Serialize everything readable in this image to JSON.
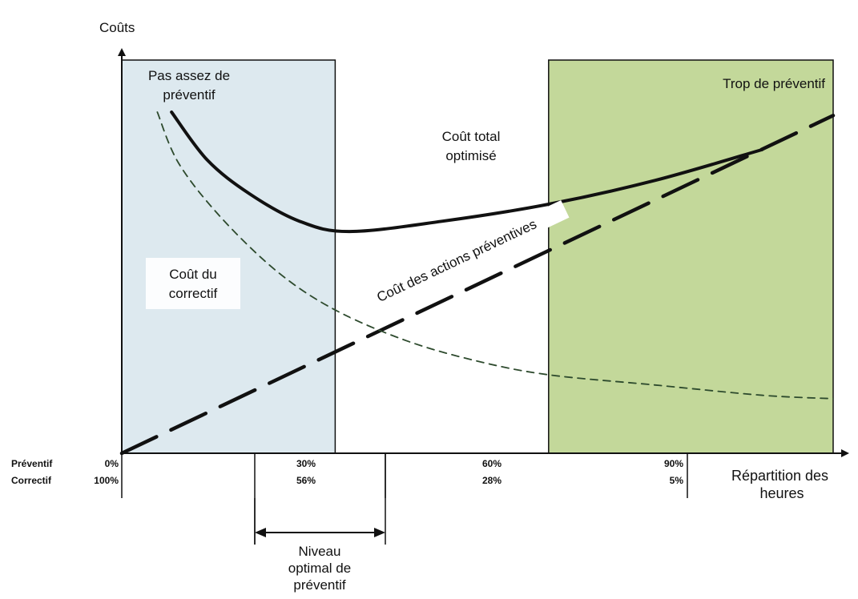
{
  "chart_data": {
    "type": "line",
    "title": "",
    "ylabel": "Coûts",
    "xlabel": "Répartition des heures",
    "row_labels": [
      "Préventif",
      "Correctif"
    ],
    "ticks": [
      {
        "preventif": "0%",
        "correctif": "100%"
      },
      {
        "preventif": "30%",
        "correctif": "56%"
      },
      {
        "preventif": "60%",
        "correctif": "28%"
      },
      {
        "preventif": "90%",
        "correctif": "5%"
      }
    ],
    "regions": [
      {
        "name": "Pas assez de préventif",
        "label_lines": [
          "Pas assez de",
          "préventif"
        ],
        "x_start": 0,
        "x_end": 30,
        "color": "#dde9ef"
      },
      {
        "name": "Trop de préventif",
        "label_lines": [
          "Trop de préventif"
        ],
        "x_start": 60,
        "x_end": 100,
        "color": "#c3d89a"
      }
    ],
    "optimal_range": {
      "label_lines": [
        "Niveau",
        "optimal de",
        "préventif"
      ],
      "x_start": 30,
      "x_end": 60
    },
    "ylim": [
      0,
      100
    ],
    "xlim": [
      0,
      100
    ],
    "series": [
      {
        "name": "Coût total optimisé",
        "label_lines": [
          "Coût total",
          "optimisé"
        ],
        "style": "solid",
        "color": "#111111",
        "points": [
          [
            7,
            100
          ],
          [
            12,
            86
          ],
          [
            18,
            76
          ],
          [
            25,
            68
          ],
          [
            32,
            65
          ],
          [
            45,
            68
          ],
          [
            60,
            73
          ],
          [
            75,
            80
          ],
          [
            90,
            89
          ]
        ]
      },
      {
        "name": "Coût des actions préventives",
        "label_lines": [
          "Coût des actions préventives"
        ],
        "style": "long-dash",
        "color": "#111111",
        "points": [
          [
            0,
            0
          ],
          [
            100,
            99
          ]
        ]
      },
      {
        "name": "Coût du correctif",
        "label_lines": [
          "Coût du",
          "correctif"
        ],
        "style": "dash",
        "color": "#2d4a2d",
        "points": [
          [
            5,
            100
          ],
          [
            8,
            85
          ],
          [
            14,
            69
          ],
          [
            22,
            53
          ],
          [
            30,
            42
          ],
          [
            40,
            33
          ],
          [
            50,
            27
          ],
          [
            60,
            23
          ],
          [
            75,
            20
          ],
          [
            90,
            17
          ],
          [
            100,
            16
          ]
        ]
      }
    ]
  }
}
